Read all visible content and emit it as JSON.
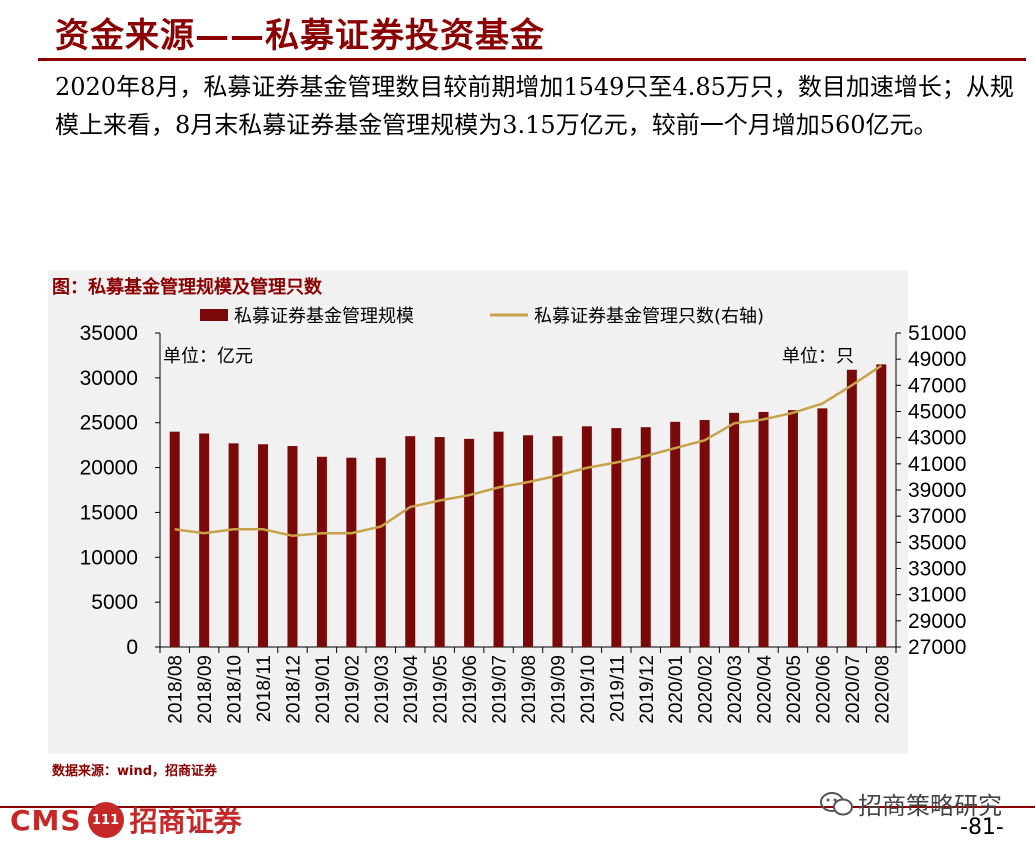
{
  "header": {
    "title": "资金来源——私募证券投资基金",
    "intro": "2020年8月，私募证券基金管理数目较前期增加1549只至4.85万只，数目加速增长；从规模上来看，8月末私募证券基金管理规模为3.15万亿元，较前一个月增加560亿元。"
  },
  "chart_title": "图：私募基金管理规模及管理只数",
  "source": "数据来源：wind，招商证券",
  "footer": {
    "logo_cms": "CMS",
    "logo_badge": "111",
    "logo_cn": "招商证券",
    "watermark": "招商策略研究",
    "page_number": "-81-"
  },
  "colors": {
    "accent": "#8b0000",
    "bar": "#7a0a0a",
    "line": "#c8a24a",
    "chart_bg": "#f1f1f1"
  },
  "chart_data": {
    "type": "bar",
    "categories": [
      "2018/08",
      "2018/09",
      "2018/10",
      "2018/11",
      "2018/12",
      "2019/01",
      "2019/02",
      "2019/03",
      "2019/04",
      "2019/05",
      "2019/06",
      "2019/07",
      "2019/08",
      "2019/09",
      "2019/10",
      "2019/11",
      "2019/12",
      "2020/01",
      "2020/02",
      "2020/03",
      "2020/04",
      "2020/05",
      "2020/06",
      "2020/07",
      "2020/08"
    ],
    "series": [
      {
        "name": "私募证券基金管理规模",
        "type": "bar",
        "axis": "left",
        "values": [
          24000,
          23800,
          22700,
          22600,
          22400,
          21200,
          21100,
          21100,
          23500,
          23400,
          23200,
          24000,
          23600,
          23500,
          24600,
          24400,
          24500,
          25100,
          25300,
          26100,
          26200,
          26400,
          26600,
          30900,
          31500
        ]
      },
      {
        "name": "私募证券基金管理只数(右轴)",
        "type": "line",
        "axis": "right",
        "values": [
          36000,
          35700,
          36000,
          36000,
          35500,
          35700,
          35700,
          36200,
          37700,
          38200,
          38600,
          39200,
          39600,
          40100,
          40700,
          41100,
          41600,
          42200,
          42800,
          44100,
          44400,
          44900,
          45600,
          47000,
          48500
        ]
      }
    ],
    "left_axis": {
      "label": "单位：亿元",
      "ylim": [
        0,
        35000
      ],
      "ticks": [
        0,
        5000,
        10000,
        15000,
        20000,
        25000,
        30000,
        35000
      ]
    },
    "right_axis": {
      "label": "单位：只",
      "ylim": [
        27000,
        51000
      ],
      "ticks": [
        27000,
        29000,
        31000,
        33000,
        35000,
        37000,
        39000,
        41000,
        43000,
        45000,
        47000,
        49000,
        51000
      ]
    },
    "legend_position": "top",
    "grid": false
  }
}
